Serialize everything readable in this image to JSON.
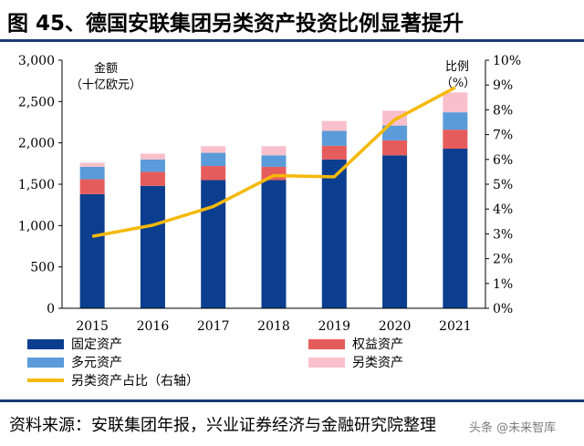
{
  "figure_title": "图 45、德国安联集团另类资产投资比例显著提升",
  "source_text": "资料来源：安联集团年报，兴业证券经济与金融研究院整理",
  "watermark": "头条 @未来智库",
  "chart_data": {
    "type": "bar",
    "stacked": true,
    "categories": [
      "2015",
      "2016",
      "2017",
      "2018",
      "2019",
      "2020",
      "2021"
    ],
    "ylabel_left": "金额（十亿欧元）",
    "ylabel_left_line1": "金额",
    "ylabel_left_line2": "（十亿欧元）",
    "ylabel_right": "比例（%）",
    "ylabel_right_line1": "比例",
    "ylabel_right_line2": "（%）",
    "ylim": [
      0,
      3000
    ],
    "yticks": [
      0,
      500,
      1000,
      1500,
      2000,
      2500,
      3000
    ],
    "yticks_labels": [
      "0",
      "500",
      "1,000",
      "1,500",
      "2,000",
      "2,500",
      "3,000"
    ],
    "ylim_right": [
      0,
      10
    ],
    "yticks_right": [
      0,
      1,
      2,
      3,
      4,
      5,
      6,
      7,
      8,
      9,
      10
    ],
    "yticks_right_labels": [
      "0%",
      "1%",
      "2%",
      "3%",
      "4%",
      "5%",
      "6%",
      "7%",
      "8%",
      "9%",
      "10%"
    ],
    "legend_position": "bottom",
    "series": [
      {
        "name": "固定资产",
        "color": "#0b3e8e",
        "values": [
          1380,
          1480,
          1550,
          1550,
          1800,
          1850,
          1930
        ]
      },
      {
        "name": "权益资产",
        "color": "#e65c5c",
        "values": [
          180,
          170,
          170,
          160,
          165,
          180,
          230
        ]
      },
      {
        "name": "多元资产",
        "color": "#5b9bd9",
        "values": [
          150,
          150,
          160,
          140,
          180,
          180,
          210
        ]
      },
      {
        "name": "另类资产",
        "color": "#f9c0cc",
        "values": [
          50,
          70,
          80,
          110,
          120,
          180,
          240
        ]
      }
    ],
    "line_series": {
      "name": "另类资产占比（右轴）",
      "color": "#f5b90a",
      "axis": "right",
      "values": [
        2.9,
        3.35,
        4.1,
        5.35,
        5.3,
        7.6,
        8.9
      ]
    }
  }
}
